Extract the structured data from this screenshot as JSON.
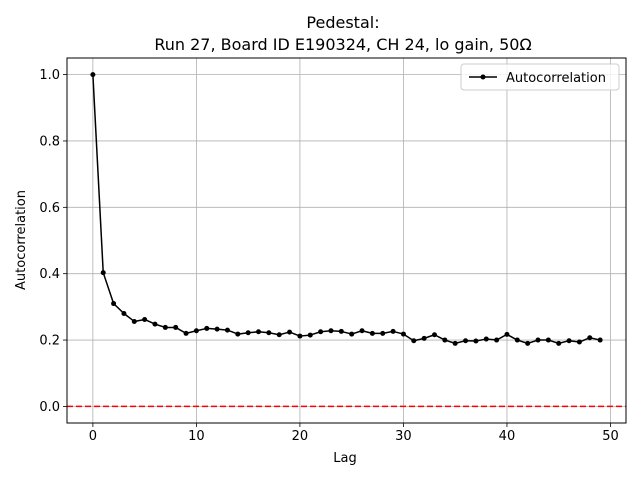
{
  "chart_data": {
    "type": "line",
    "title_line1": "Pedestal:",
    "title_line2": "Run 27, Board ID E190324, CH 24, lo gain, 50Ω",
    "xlabel": "Lag",
    "ylabel": "Autocorrelation",
    "xlim": [
      -2.5,
      51.5
    ],
    "ylim": [
      -0.05,
      1.05
    ],
    "xticks": [
      0,
      10,
      20,
      30,
      40,
      50
    ],
    "yticks": [
      0.0,
      0.2,
      0.4,
      0.6,
      0.8,
      1.0
    ],
    "xtick_labels": [
      "0",
      "10",
      "20",
      "30",
      "40",
      "50"
    ],
    "ytick_labels": [
      "0.0",
      "0.2",
      "0.4",
      "0.6",
      "0.8",
      "1.0"
    ],
    "grid": true,
    "legend_position": "top-right",
    "reference_line": {
      "y": 0.0,
      "color": "#ff0000",
      "style": "dashed"
    },
    "series": [
      {
        "name": "Autocorrelation",
        "color": "#000000",
        "marker": "dot",
        "x": [
          0,
          1,
          2,
          3,
          4,
          5,
          6,
          7,
          8,
          9,
          10,
          11,
          12,
          13,
          14,
          15,
          16,
          17,
          18,
          19,
          20,
          21,
          22,
          23,
          24,
          25,
          26,
          27,
          28,
          29,
          30,
          31,
          32,
          33,
          34,
          35,
          36,
          37,
          38,
          39,
          40,
          41,
          42,
          43,
          44,
          45,
          46,
          47,
          48,
          49
        ],
        "values": [
          1.0,
          0.403,
          0.31,
          0.28,
          0.256,
          0.262,
          0.248,
          0.238,
          0.238,
          0.22,
          0.228,
          0.235,
          0.233,
          0.23,
          0.218,
          0.222,
          0.225,
          0.222,
          0.216,
          0.224,
          0.212,
          0.215,
          0.225,
          0.228,
          0.226,
          0.218,
          0.228,
          0.22,
          0.22,
          0.226,
          0.218,
          0.198,
          0.205,
          0.216,
          0.2,
          0.19,
          0.198,
          0.197,
          0.203,
          0.2,
          0.217,
          0.2,
          0.19,
          0.2,
          0.2,
          0.19,
          0.198,
          0.194,
          0.207,
          0.2
        ]
      }
    ]
  }
}
